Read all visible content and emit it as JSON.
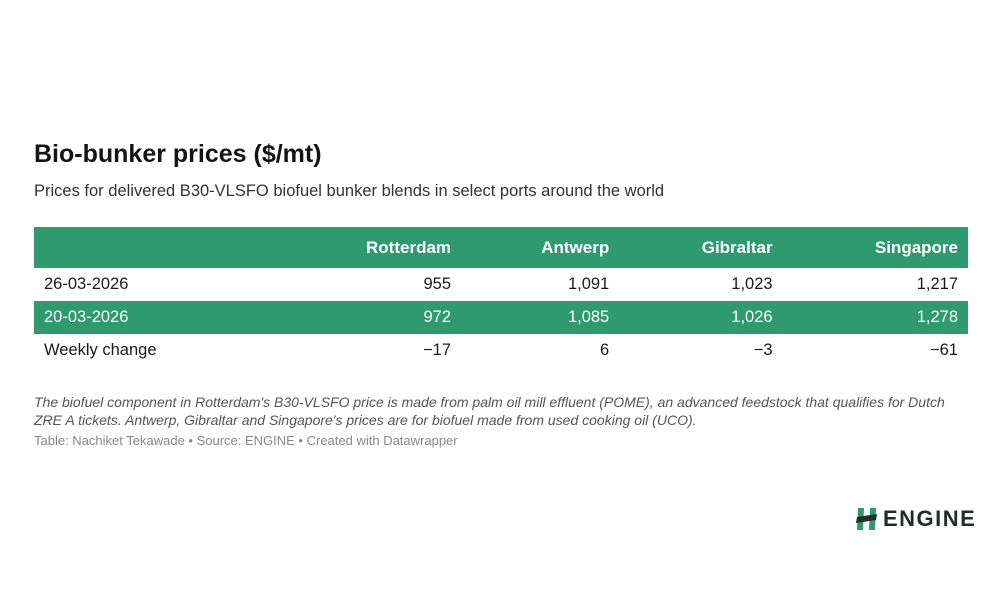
{
  "title": "Bio-bunker prices ($/mt)",
  "subtitle": "Prices for delivered B30-VLSFO biofuel bunker blends in select ports around the world",
  "chart_data": {
    "type": "table",
    "columns": [
      "",
      "Rotterdam",
      "Antwerp",
      "Gibraltar",
      "Singapore"
    ],
    "rows": [
      {
        "label": "26-03-2026",
        "values": [
          "955",
          "1,091",
          "1,023",
          "1,217"
        ],
        "shaded": false
      },
      {
        "label": "20-03-2026",
        "values": [
          "972",
          "1,085",
          "1,026",
          "1,278"
        ],
        "shaded": true
      },
      {
        "label": "Weekly change",
        "values": [
          "−17",
          "6",
          "−3",
          "−61"
        ],
        "shaded": false
      }
    ]
  },
  "note": "The biofuel component in Rotterdam's B30-VLSFO price is made from palm oil mill effluent (POME), an advanced feedstock that qualifies for Dutch ZRE A tickets. Antwerp, Gibraltar and Singapore's prices are for biofuel made from used cooking oil (UCO).",
  "credit": "Table: Nachiket Tekawade • Source: ENGINE • Created with Datawrapper",
  "logo": {
    "text": "ENGINE",
    "icon": "engine-logo-icon"
  },
  "colors": {
    "header_bg": "#2e9a6d",
    "shaded_row_bg": "#2e9a6d",
    "logo_green": "#2e9a6d"
  }
}
